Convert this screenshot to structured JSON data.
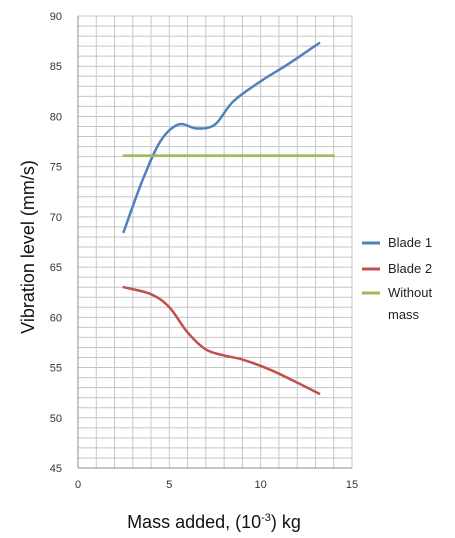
{
  "chart_data": {
    "type": "line",
    "title": "",
    "xlabel_parts": {
      "before": "Mass added, (10",
      "sup": "-3",
      "after": ") kg"
    },
    "ylabel": "Vibration level (mm/s)",
    "xlim": [
      0,
      15
    ],
    "ylim": [
      45,
      90
    ],
    "x_ticks": [
      0,
      5,
      10,
      15
    ],
    "y_ticks": [
      45,
      50,
      55,
      60,
      65,
      70,
      75,
      80,
      85,
      90
    ],
    "grid": true,
    "grid_minor_x": 1,
    "grid_minor_y": 1,
    "legend_position": "right",
    "series": [
      {
        "name": "Blade 1",
        "color": "#4f81bd",
        "x": [
          2.5,
          3.5,
          4.5,
          5.5,
          6.5,
          7.5,
          8.5,
          10,
          11.5,
          13.2
        ],
        "y": [
          68.5,
          73.5,
          77.5,
          79.2,
          78.8,
          79.2,
          81.5,
          83.5,
          85.2,
          87.3
        ]
      },
      {
        "name": "Blade 2",
        "color": "#c0504d",
        "x": [
          2.5,
          4,
          5,
          6,
          7,
          8,
          9,
          10.5,
          12,
          13.2
        ],
        "y": [
          63,
          62.3,
          61,
          58.5,
          56.8,
          56.2,
          55.8,
          54.8,
          53.5,
          52.4
        ]
      },
      {
        "name_lines": [
          "Without",
          "mass"
        ],
        "color": "#9bbb59",
        "x": [
          2.5,
          14
        ],
        "y": [
          76.1,
          76.1
        ]
      }
    ]
  }
}
